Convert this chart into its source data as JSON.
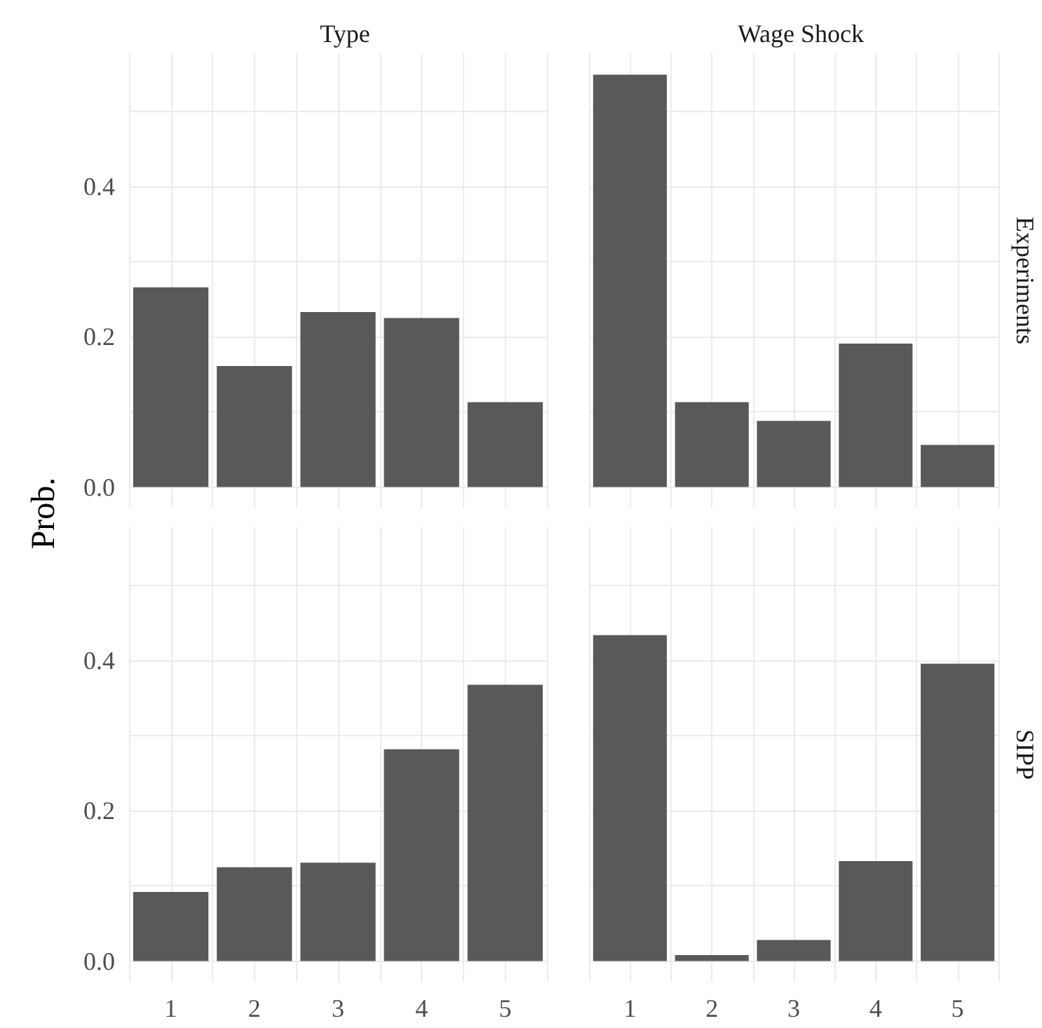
{
  "chart_data": [
    {
      "type": "bar",
      "title": "Type",
      "ylabel": "Prob.",
      "categories": [
        "1",
        "2",
        "3",
        "4",
        "5"
      ],
      "values": [
        0.266,
        0.161,
        0.233,
        0.225,
        0.113
      ],
      "color": "#595959",
      "ylim": [
        -0.0275,
        0.5775
      ],
      "yticks": [
        {
          "value": 0,
          "label": "0.0"
        },
        {
          "value": 0.1,
          "label": null
        },
        {
          "value": 0.2,
          "label": "0.2"
        },
        {
          "value": 0.3,
          "label": null
        },
        {
          "value": 0.4,
          "label": "0.4"
        },
        {
          "value": 0.5,
          "label": null
        }
      ],
      "grid": true,
      "tick_labels": "y"
    },
    {
      "type": "bar",
      "title": "Wage Shock",
      "annotations": [
        "Experiments"
      ],
      "categories": [
        "1",
        "2",
        "3",
        "4",
        "5"
      ],
      "values": [
        0.549,
        0.113,
        0.088,
        0.191,
        0.056
      ],
      "color": "#595959",
      "ylim": [
        -0.0275,
        0.5775
      ],
      "yticks": [
        {
          "value": 0,
          "label": null
        },
        {
          "value": 0.1,
          "label": null
        },
        {
          "value": 0.2,
          "label": null
        },
        {
          "value": 0.3,
          "label": null
        },
        {
          "value": 0.4,
          "label": null
        },
        {
          "value": 0.5,
          "label": null
        }
      ],
      "grid": true,
      "tick_labels": false
    },
    {
      "type": "bar",
      "categories": [
        "1",
        "2",
        "3",
        "4",
        "5"
      ],
      "values": [
        0.092,
        0.125,
        0.131,
        0.282,
        0.368
      ],
      "color": "#595959",
      "ylim": [
        -0.0275,
        0.5775
      ],
      "yticks": [
        {
          "value": 0,
          "label": "0.0"
        },
        {
          "value": 0.1,
          "label": null
        },
        {
          "value": 0.2,
          "label": "0.2"
        },
        {
          "value": 0.3,
          "label": null
        },
        {
          "value": 0.4,
          "label": "0.4"
        },
        {
          "value": 0.5,
          "label": null
        }
      ],
      "grid": true
    },
    {
      "type": "bar",
      "annotations": [
        "SIPP"
      ],
      "categories": [
        "1",
        "2",
        "3",
        "4",
        "5"
      ],
      "values": [
        0.434,
        0.008,
        0.028,
        0.133,
        0.396
      ],
      "color": "#595959",
      "ylim": [
        -0.0275,
        0.5775
      ],
      "yticks": [
        {
          "value": 0,
          "label": null
        },
        {
          "value": 0.1,
          "label": null
        },
        {
          "value": 0.2,
          "label": null
        },
        {
          "value": 0.3,
          "label": null
        },
        {
          "value": 0.4,
          "label": null
        },
        {
          "value": 0.5,
          "label": null
        }
      ],
      "grid": true,
      "tick_labels": "x"
    }
  ]
}
